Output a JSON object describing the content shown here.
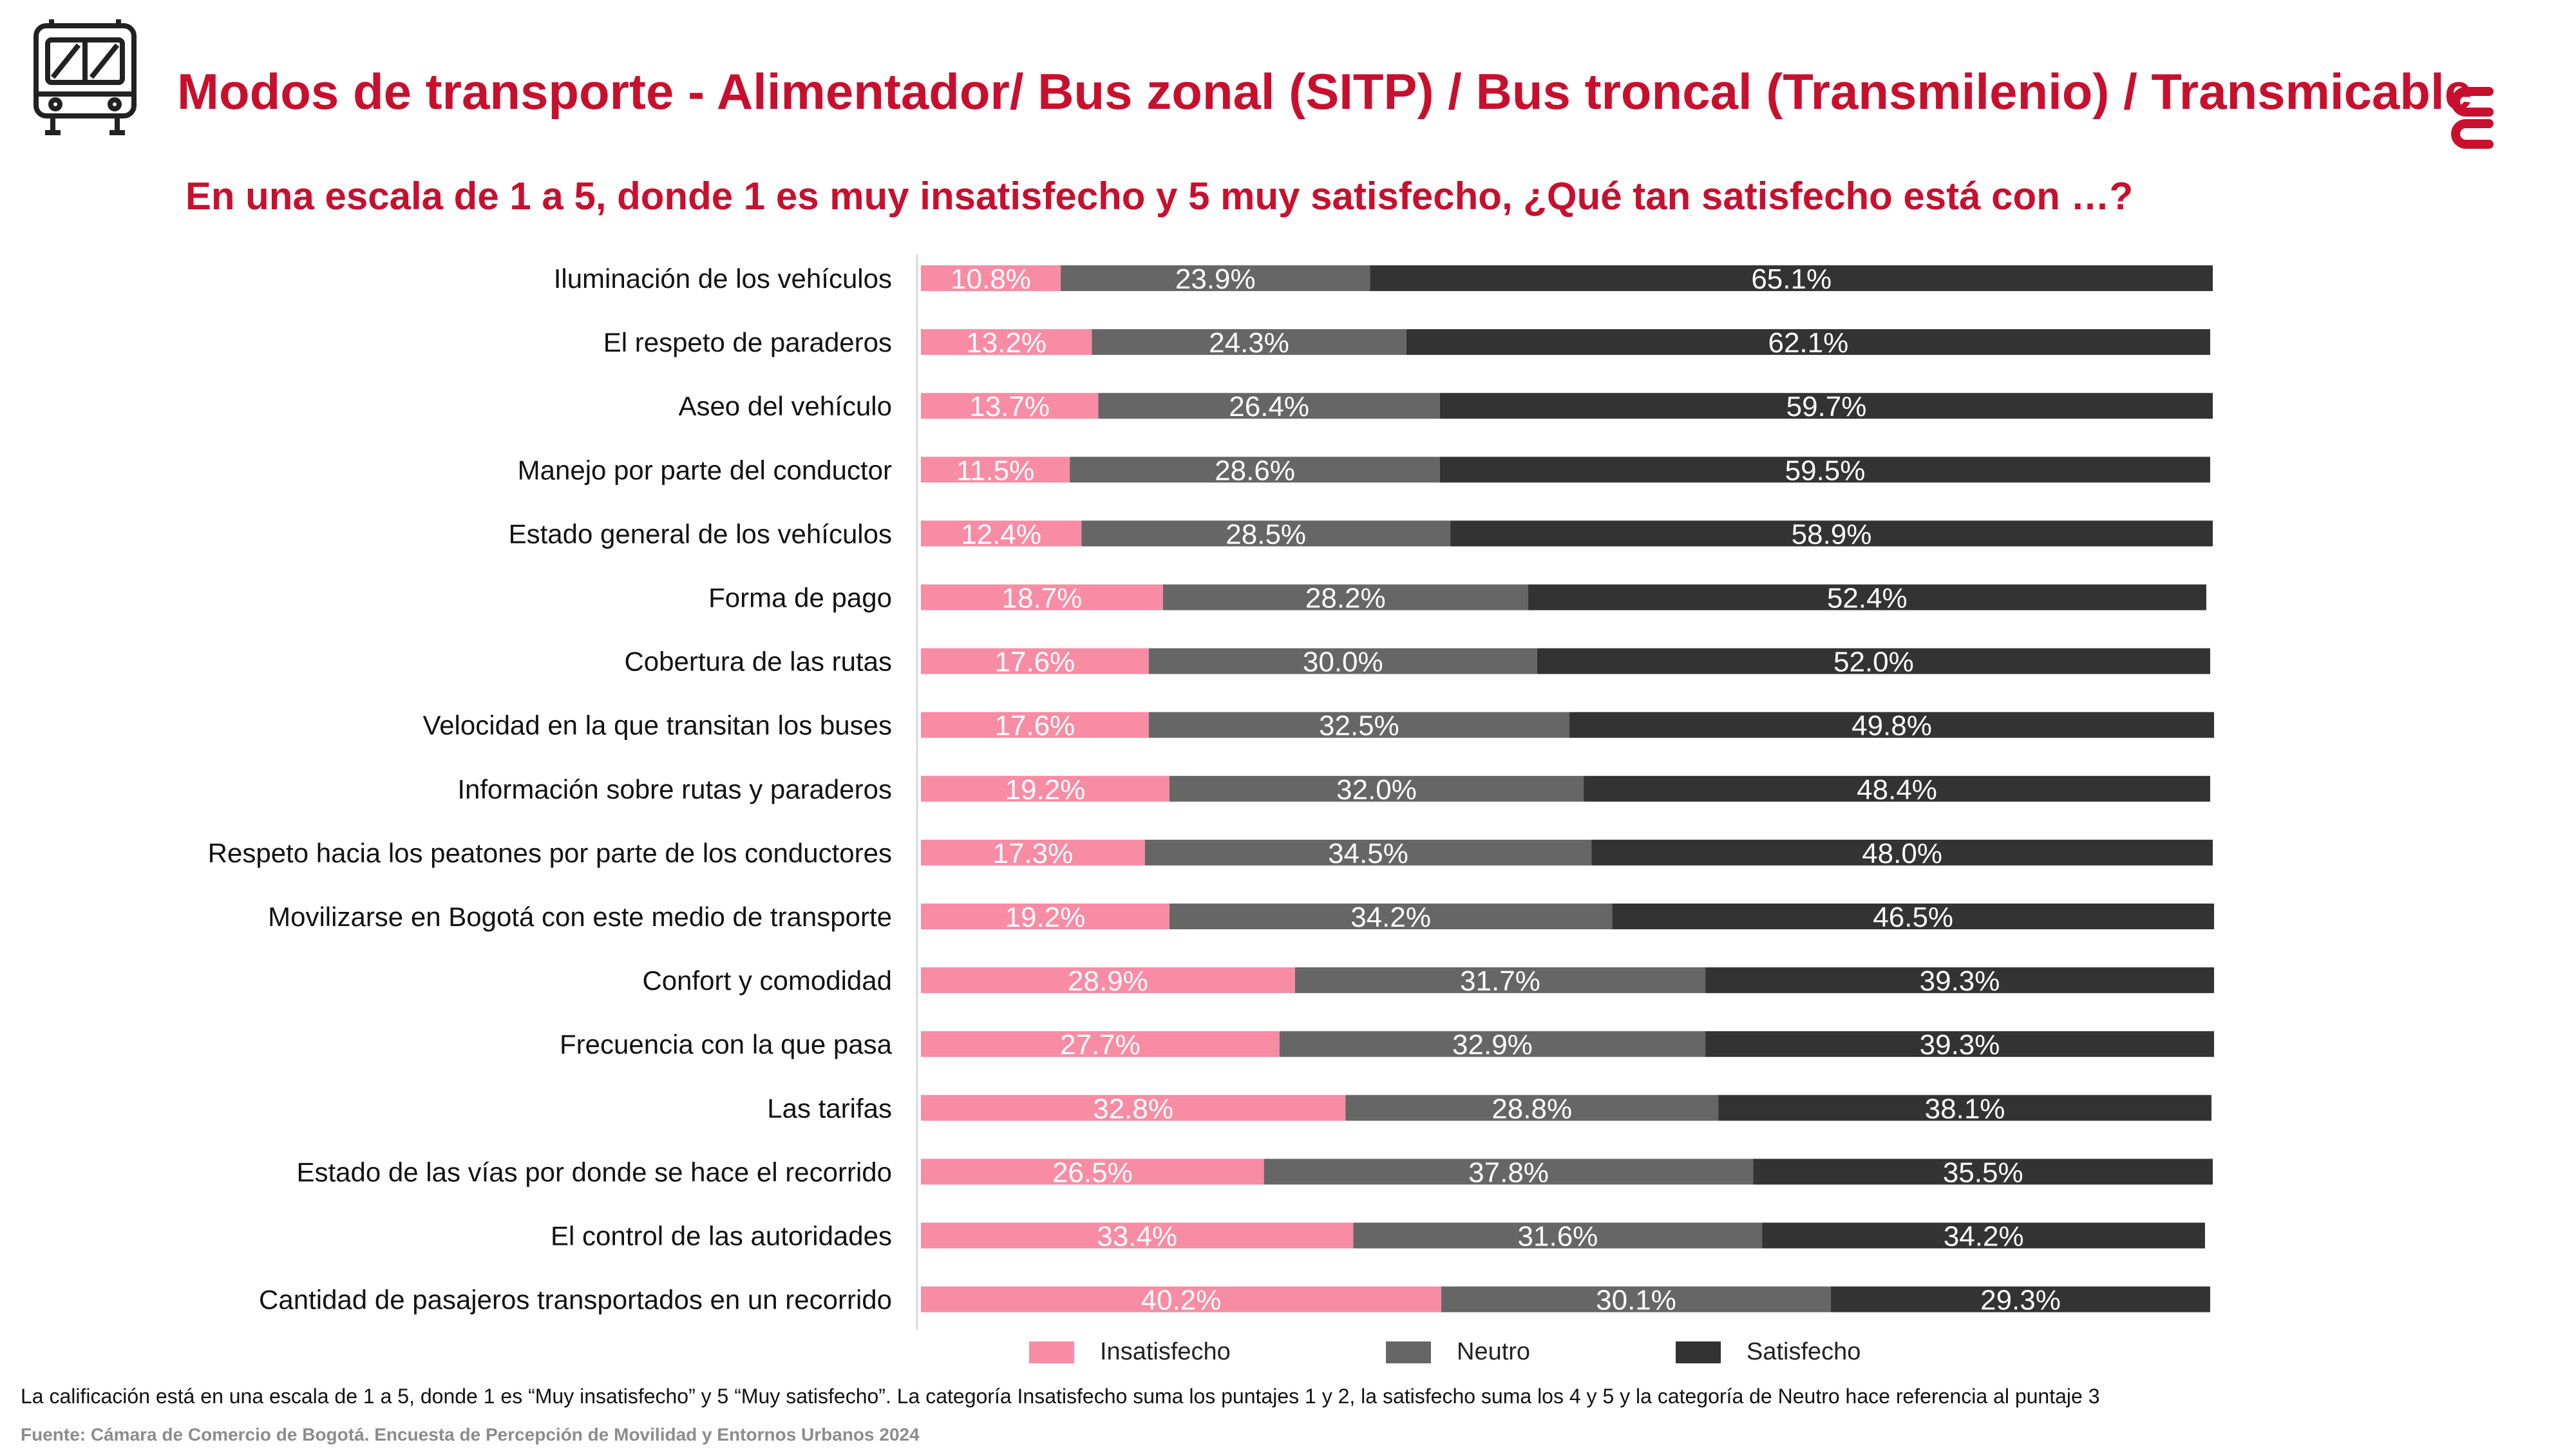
{
  "header": {
    "title": "Modos de transporte - Alimentador/ Bus zonal (SITP) / Bus troncal (Transmilenio) / Transmicable",
    "subtitle": "En una escala de 1 a 5, donde 1 es muy insatisfecho y 5 muy satisfecho, ¿Qué tan satisfecho está con …?",
    "icon": "bus-icon",
    "logo": "ccb-logo-icon",
    "accent_color": "#c8102e"
  },
  "chart_data": {
    "type": "bar",
    "orientation": "horizontal",
    "stacked": true,
    "percent": true,
    "xlim": [
      0,
      100
    ],
    "grid": false,
    "legend_position": "bottom",
    "categories": [
      "Iluminación de los vehículos",
      "El respeto de paraderos",
      "Aseo del vehículo",
      "Manejo por parte del conductor",
      "Estado general de los vehículos",
      "Forma de pago",
      "Cobertura de las rutas",
      "Velocidad en la que transitan los buses",
      "Información sobre rutas y paraderos",
      "Respeto hacia los peatones por parte de los conductores",
      "Movilizarse en Bogotá con este medio de transporte",
      "Confort y comodidad",
      "Frecuencia con la que pasa",
      "Las tarifas",
      "Estado de las vías por donde se hace el recorrido",
      "El control de las autoridades",
      "Cantidad de pasajeros transportados en un recorrido"
    ],
    "series": [
      {
        "name": "Insatisfecho",
        "color": "#f78ca4",
        "values": [
          10.8,
          13.2,
          13.7,
          11.5,
          12.4,
          18.7,
          17.6,
          17.6,
          19.2,
          17.3,
          19.2,
          28.9,
          27.7,
          32.8,
          26.5,
          33.4,
          40.2
        ]
      },
      {
        "name": "Neutro",
        "color": "#666666",
        "values": [
          23.9,
          24.3,
          26.4,
          28.6,
          28.5,
          28.2,
          30.0,
          32.5,
          32.0,
          34.5,
          34.2,
          31.7,
          32.9,
          28.8,
          37.8,
          31.6,
          30.1
        ]
      },
      {
        "name": "Satisfecho",
        "color": "#333333",
        "values": [
          65.1,
          62.1,
          59.7,
          59.5,
          58.9,
          52.4,
          52.0,
          49.8,
          48.4,
          48.0,
          46.5,
          39.3,
          39.3,
          38.1,
          35.5,
          34.2,
          29.3
        ]
      }
    ]
  },
  "footer": {
    "note": "La calificación está en una escala de 1 a 5, donde 1 es “Muy insatisfecho” y 5 “Muy satisfecho”. La categoría Insatisfecho suma los puntajes 1 y 2, la satisfecho suma los 4 y 5 y la categoría de Neutro hace referencia al puntaje 3",
    "source": "Fuente: Cámara de Comercio de Bogotá. Encuesta de Percepción de Movilidad y Entornos Urbanos 2024"
  }
}
